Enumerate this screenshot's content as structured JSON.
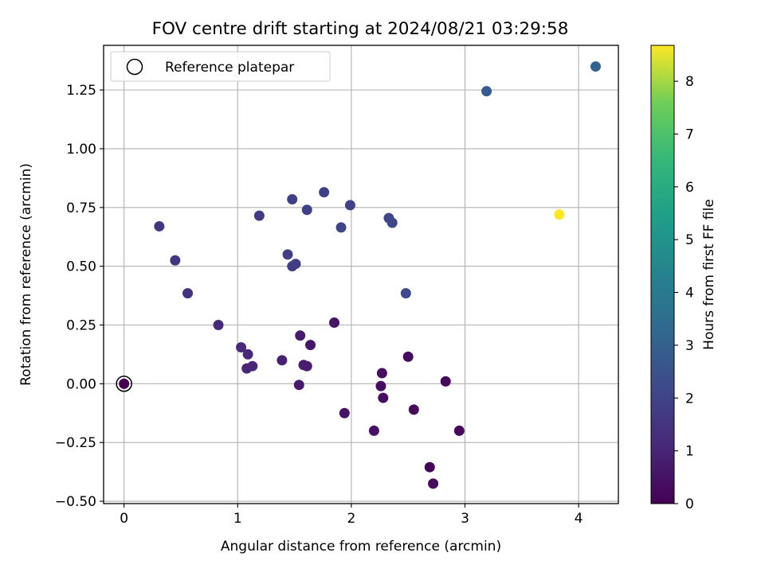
{
  "chart_data": {
    "type": "scatter",
    "title": "FOV centre drift starting at 2024/08/21 03:29:58",
    "xlabel": "Angular distance from reference (arcmin)",
    "ylabel": "Rotation from reference (arcmin)",
    "xlim": [
      -0.18,
      4.35
    ],
    "ylim": [
      -0.51,
      1.44
    ],
    "xticks": [
      0,
      1,
      2,
      3,
      4
    ],
    "xtick_labels": [
      "0",
      "1",
      "2",
      "3",
      "4"
    ],
    "yticks": [
      -0.5,
      -0.25,
      0,
      0.25,
      0.5,
      0.75,
      1.0,
      1.25
    ],
    "ytick_labels": [
      "−0.50",
      "−0.25",
      "0.00",
      "0.25",
      "0.50",
      "0.75",
      "1.00",
      "1.25"
    ],
    "grid": true,
    "legend": {
      "position": "top-left",
      "entries": [
        "Reference platepar"
      ]
    },
    "colorbar": {
      "label": "Hours from first FF file",
      "colormap": "viridis",
      "range": [
        0,
        8.68
      ],
      "ticks": [
        0,
        1,
        2,
        3,
        4,
        5,
        6,
        7,
        8
      ],
      "tick_labels": [
        "0",
        "1",
        "2",
        "3",
        "4",
        "5",
        "6",
        "7",
        "8"
      ]
    },
    "reference": {
      "x": 0,
      "y": 0
    },
    "points": [
      {
        "x": 0.0,
        "y": 0.0,
        "c": 0.0
      },
      {
        "x": 2.69,
        "y": -0.355,
        "c": 0.15
      },
      {
        "x": 2.72,
        "y": -0.425,
        "c": 0.2
      },
      {
        "x": 2.83,
        "y": 0.01,
        "c": 0.2
      },
      {
        "x": 2.95,
        "y": -0.2,
        "c": 0.2
      },
      {
        "x": 2.55,
        "y": -0.11,
        "c": 0.25
      },
      {
        "x": 2.5,
        "y": 0.115,
        "c": 0.3
      },
      {
        "x": 2.27,
        "y": 0.045,
        "c": 0.35
      },
      {
        "x": 2.26,
        "y": -0.01,
        "c": 0.35
      },
      {
        "x": 2.28,
        "y": -0.06,
        "c": 0.35
      },
      {
        "x": 2.2,
        "y": -0.2,
        "c": 0.45
      },
      {
        "x": 1.94,
        "y": -0.125,
        "c": 0.5
      },
      {
        "x": 1.85,
        "y": 0.26,
        "c": 0.55
      },
      {
        "x": 1.64,
        "y": 0.165,
        "c": 0.6
      },
      {
        "x": 1.55,
        "y": 0.205,
        "c": 0.7
      },
      {
        "x": 1.54,
        "y": -0.005,
        "c": 0.7
      },
      {
        "x": 1.58,
        "y": 0.08,
        "c": 0.8
      },
      {
        "x": 1.61,
        "y": 0.075,
        "c": 0.8
      },
      {
        "x": 1.39,
        "y": 0.1,
        "c": 0.9
      },
      {
        "x": 1.13,
        "y": 0.075,
        "c": 1.0
      },
      {
        "x": 1.08,
        "y": 0.065,
        "c": 1.0
      },
      {
        "x": 1.09,
        "y": 0.125,
        "c": 1.1
      },
      {
        "x": 1.03,
        "y": 0.155,
        "c": 1.15
      },
      {
        "x": 0.83,
        "y": 0.25,
        "c": 1.2
      },
      {
        "x": 0.56,
        "y": 0.385,
        "c": 1.4
      },
      {
        "x": 0.45,
        "y": 0.525,
        "c": 1.5
      },
      {
        "x": 0.31,
        "y": 0.67,
        "c": 1.6
      },
      {
        "x": 1.19,
        "y": 0.715,
        "c": 1.7
      },
      {
        "x": 1.44,
        "y": 0.55,
        "c": 1.8
      },
      {
        "x": 1.48,
        "y": 0.5,
        "c": 1.8
      },
      {
        "x": 1.51,
        "y": 0.51,
        "c": 1.8
      },
      {
        "x": 1.48,
        "y": 0.785,
        "c": 1.9
      },
      {
        "x": 1.61,
        "y": 0.74,
        "c": 1.9
      },
      {
        "x": 1.76,
        "y": 0.815,
        "c": 1.9
      },
      {
        "x": 1.99,
        "y": 0.76,
        "c": 2.0
      },
      {
        "x": 1.91,
        "y": 0.665,
        "c": 2.0
      },
      {
        "x": 2.33,
        "y": 0.705,
        "c": 2.1
      },
      {
        "x": 2.36,
        "y": 0.685,
        "c": 2.1
      },
      {
        "x": 2.48,
        "y": 0.385,
        "c": 2.2
      },
      {
        "x": 3.19,
        "y": 1.245,
        "c": 2.8
      },
      {
        "x": 4.15,
        "y": 1.35,
        "c": 3.0
      },
      {
        "x": 3.83,
        "y": 0.72,
        "c": 8.68
      }
    ]
  }
}
